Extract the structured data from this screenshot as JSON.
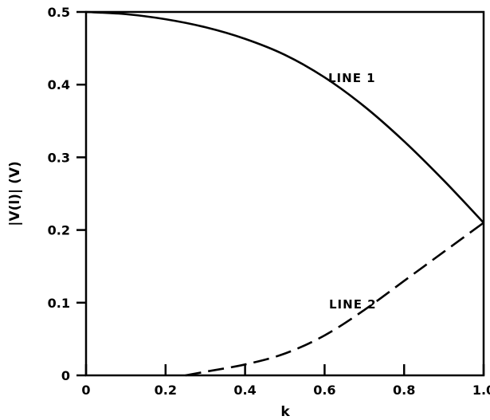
{
  "chart_data": {
    "type": "line",
    "xlabel": "k",
    "ylabel": "|V(l)|  (V)",
    "xlim": [
      0,
      1.0
    ],
    "ylim": [
      0,
      0.5
    ],
    "x_ticks": [
      "0",
      "0.2",
      "0.4",
      "0.6",
      "0.8",
      "1.0"
    ],
    "y_ticks": [
      "0",
      "0.1",
      "0.2",
      "0.3",
      "0.4",
      "0.5"
    ],
    "grid": false,
    "series": [
      {
        "name": "LINE 1",
        "style": "solid",
        "x": [
          0,
          0.1,
          0.2,
          0.3,
          0.4,
          0.5,
          0.6,
          0.7,
          0.8,
          0.9,
          1.0
        ],
        "y": [
          0.5,
          0.497,
          0.49,
          0.479,
          0.463,
          0.441,
          0.41,
          0.37,
          0.322,
          0.268,
          0.21
        ]
      },
      {
        "name": "LINE 2",
        "style": "dashed",
        "x": [
          0.25,
          0.3,
          0.4,
          0.5,
          0.6,
          0.7,
          0.8,
          0.9,
          1.0
        ],
        "y": [
          0,
          0.005,
          0.015,
          0.03,
          0.055,
          0.09,
          0.13,
          0.17,
          0.21
        ]
      }
    ]
  }
}
